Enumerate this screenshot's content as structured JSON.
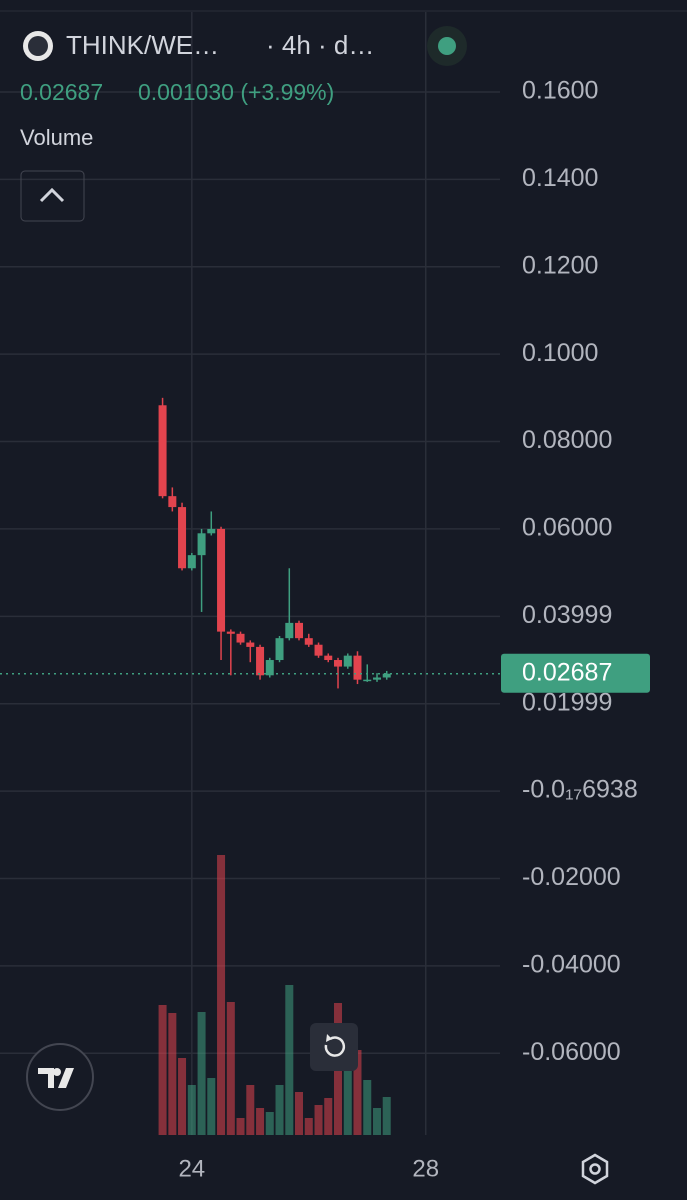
{
  "header": {
    "symbol": "THINK/WE…",
    "interval": "· 4h · d…",
    "change": "0.001030 (+3.99%)",
    "volume_label": "Volume"
  },
  "chart_data": {
    "type": "candlestick",
    "last_price": 0.02687,
    "up_color": "#3f9f80",
    "down_color": "#e2444e",
    "x": [
      23.5,
      23.667,
      23.833,
      24,
      24.167,
      24.333,
      24.5,
      24.667,
      24.833,
      25,
      25.167,
      25.333,
      25.5,
      25.667,
      25.833,
      26,
      26.167,
      26.333,
      26.5,
      26.667,
      26.833,
      27,
      27.167,
      27.333
    ],
    "open": [
      0.0883,
      0.0675,
      0.065,
      0.051,
      0.054,
      0.059,
      0.06,
      0.0365,
      0.036,
      0.034,
      0.033,
      0.0265,
      0.03,
      0.035,
      0.0385,
      0.035,
      0.0335,
      0.031,
      0.03,
      0.0285,
      0.031,
      0.0255,
      0.0255,
      0.026
    ],
    "high": [
      0.09,
      0.0695,
      0.066,
      0.0545,
      0.06,
      0.064,
      0.0605,
      0.037,
      0.0365,
      0.0345,
      0.0335,
      0.0305,
      0.0355,
      0.051,
      0.039,
      0.036,
      0.034,
      0.0315,
      0.0305,
      0.0315,
      0.032,
      0.029,
      0.027,
      0.0275
    ],
    "low": [
      0.067,
      0.064,
      0.0505,
      0.0505,
      0.041,
      0.0585,
      0.03,
      0.0265,
      0.0335,
      0.0295,
      0.0255,
      0.026,
      0.0295,
      0.0345,
      0.0345,
      0.033,
      0.0305,
      0.0295,
      0.0235,
      0.028,
      0.0245,
      0.025,
      0.025,
      0.0255
    ],
    "close": [
      0.0675,
      0.065,
      0.051,
      0.054,
      0.059,
      0.06,
      0.0365,
      0.036,
      0.034,
      0.033,
      0.0265,
      0.03,
      0.035,
      0.0385,
      0.035,
      0.0335,
      0.031,
      0.03,
      0.0285,
      0.031,
      0.0255,
      0.0255,
      0.026,
      0.02687
    ],
    "volume": [
      130,
      122,
      77,
      50,
      123,
      57,
      280,
      133,
      17,
      50,
      27,
      23,
      50,
      150,
      43,
      17,
      30,
      37,
      132,
      97,
      85,
      55,
      27,
      38
    ],
    "xlim": [
      20.72,
      29.27
    ],
    "xticks": [
      24,
      28
    ],
    "ylim": [
      -0.0787,
      0.1783
    ],
    "yticks": [
      {
        "value": 0.16,
        "label": "0.1600"
      },
      {
        "value": 0.14,
        "label": "0.1400"
      },
      {
        "value": 0.12,
        "label": "0.1200"
      },
      {
        "value": 0.1,
        "label": "0.1000"
      },
      {
        "value": 0.08,
        "label": "0.08000"
      },
      {
        "value": 0.06,
        "label": "0.06000"
      },
      {
        "value": 0.03999,
        "label": "0.03999"
      },
      {
        "value": 0.01999,
        "label": "0.01999"
      },
      {
        "value": -6.938e-18,
        "label": "-0.0₁₇6938"
      },
      {
        "value": -0.02,
        "label": "-0.02000"
      },
      {
        "value": -0.04,
        "label": "-0.04000"
      },
      {
        "value": -0.06,
        "label": "-0.06000"
      }
    ],
    "grid": true
  }
}
